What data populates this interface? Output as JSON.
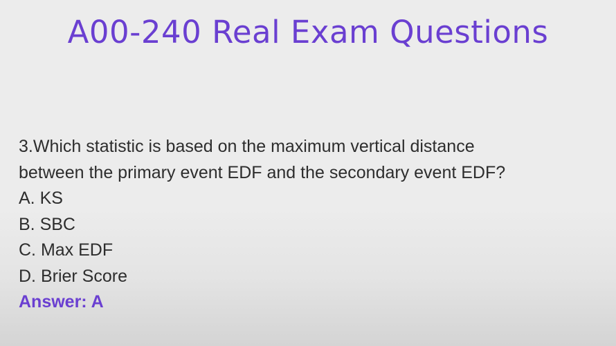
{
  "slide": {
    "title": "A00-240 Real Exam Questions",
    "question": {
      "line1": "3.Which statistic is based on the maximum vertical distance",
      "line2": "between the primary event EDF and the secondary event EDF?"
    },
    "options": [
      "A. KS",
      "B. SBC",
      "C. Max EDF",
      "D. Brier Score"
    ],
    "answer": "Answer: A",
    "colors": {
      "accent": "#6a3fd1",
      "text": "#2d2d2d",
      "background": "#ececec"
    }
  }
}
